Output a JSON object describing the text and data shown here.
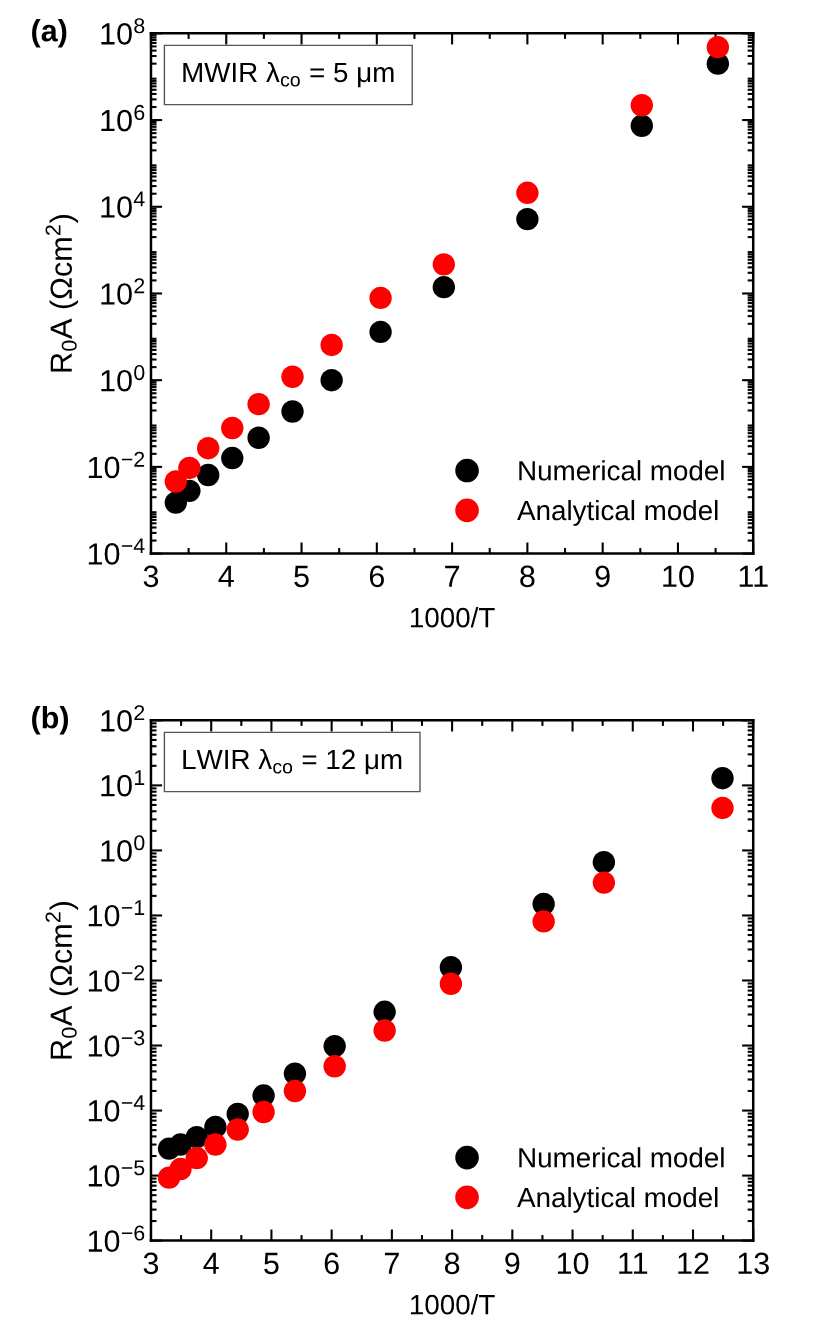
{
  "chart_data": [
    {
      "type": "scatter",
      "xlabel": "1000/T",
      "ylabel": "R$_{0}$A (Ωcm$^{2}$)",
      "annotations": [
        "(a)",
        "MWIR λ$_{co}$ = 5 μm"
      ],
      "log": "y",
      "grid": false,
      "legend": "bottom right",
      "marker": "circle",
      "xlim": [
        3,
        11
      ],
      "xticks": [
        3,
        4,
        5,
        6,
        7,
        8,
        9,
        10,
        11
      ],
      "ylim": [
        0.0001,
        100000000
      ],
      "yticks": [
        {
          "value": 0.0001,
          "label": "10$^{−4}$"
        },
        {
          "value": 0.01,
          "label": "10$^{−2}$"
        },
        {
          "value": 1,
          "label": "10$^{0}$"
        },
        {
          "value": 100,
          "label": "10$^{2}$"
        },
        {
          "value": 10000,
          "label": "10$^{4}$"
        },
        {
          "value": 1000000,
          "label": "10$^{6}$"
        },
        {
          "value": 100000000,
          "label": "10$^{8}$"
        }
      ],
      "series": [
        {
          "name": "Numerical model",
          "color": "#000000",
          "x": [
            3.33,
            3.51,
            3.76,
            4.08,
            4.43,
            4.88,
            5.4,
            6.05,
            6.89,
            8.0,
            9.52,
            10.53
          ],
          "values": [
            0.0015,
            0.0028,
            0.0065,
            0.016,
            0.047,
            0.19,
            1.0,
            13,
            140,
            5200,
            740000,
            20000000
          ]
        },
        {
          "name": "Analytical model",
          "color": "#ff0000",
          "x": [
            3.33,
            3.51,
            3.76,
            4.08,
            4.43,
            4.88,
            5.4,
            6.05,
            6.89,
            8.0,
            9.52,
            10.53
          ],
          "values": [
            0.0046,
            0.0095,
            0.027,
            0.079,
            0.28,
            1.2,
            6.5,
            79,
            470,
            21000,
            2200000,
            48000000
          ]
        }
      ]
    },
    {
      "type": "scatter",
      "xlabel": "1000/T",
      "ylabel": "R$_{0}$A (Ωcm$^{2}$)",
      "annotations": [
        "(b)",
        "LWIR λ$_{co}$ = 12 μm"
      ],
      "log": "y",
      "grid": false,
      "legend": "bottom right",
      "marker": "circle",
      "xlim": [
        3,
        13
      ],
      "xticks": [
        3,
        4,
        5,
        6,
        7,
        8,
        9,
        10,
        11,
        12,
        13
      ],
      "ylim": [
        1e-06,
        100
      ],
      "yticks": [
        {
          "value": 1e-06,
          "label": "10$^{−6}$"
        },
        {
          "value": 1e-05,
          "label": "10$^{−5}$"
        },
        {
          "value": 0.0001,
          "label": "10$^{−4}$"
        },
        {
          "value": 0.001,
          "label": "10$^{−3}$"
        },
        {
          "value": 0.01,
          "label": "10$^{−2}$"
        },
        {
          "value": 0.1,
          "label": "10$^{−1}$"
        },
        {
          "value": 1,
          "label": "10$^{0}$"
        },
        {
          "value": 10,
          "label": "10$^{1}$"
        },
        {
          "value": 100,
          "label": "10$^{2}$"
        }
      ],
      "series": [
        {
          "name": "Numerical model",
          "color": "#000000",
          "x": [
            3.3,
            3.49,
            3.76,
            4.07,
            4.44,
            4.87,
            5.39,
            6.05,
            6.88,
            7.98,
            9.52,
            10.52,
            12.49
          ],
          "values": [
            2.6e-05,
            3e-05,
            3.9e-05,
            5.6e-05,
            8.9e-05,
            0.00017,
            0.00037,
            0.00098,
            0.0033,
            0.016,
            0.15,
            0.66,
            12.9
          ]
        },
        {
          "name": "Analytical model",
          "color": "#ff0000",
          "x": [
            3.3,
            3.49,
            3.76,
            4.07,
            4.44,
            4.87,
            5.39,
            6.05,
            6.88,
            7.98,
            9.52,
            10.52,
            12.49
          ],
          "values": [
            9.3e-06,
            1.26e-05,
            1.86e-05,
            3e-05,
            5.1e-05,
            9.5e-05,
            0.0002,
            0.00048,
            0.0017,
            0.0089,
            0.081,
            0.32,
            4.5
          ]
        }
      ]
    }
  ]
}
